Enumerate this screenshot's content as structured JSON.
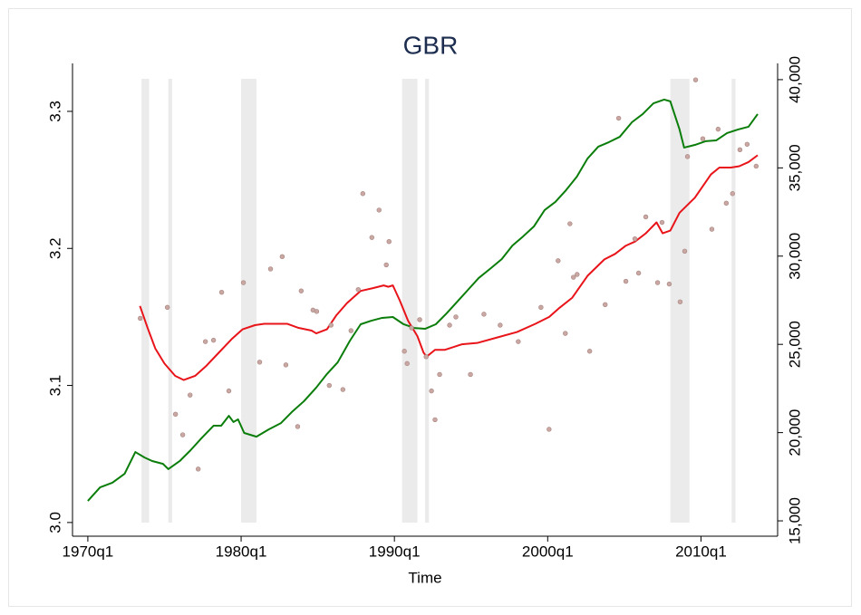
{
  "chart_data": {
    "type": "line",
    "title": "GBR",
    "xlabel": "Time",
    "xlim": [
      1969,
      2015
    ],
    "xticks": [
      {
        "value": 1970,
        "label": "1970q1"
      },
      {
        "value": 1980,
        "label": "1980q1"
      },
      {
        "value": 1990,
        "label": "1990q1"
      },
      {
        "value": 2000,
        "label": "2000q1"
      },
      {
        "value": 2010,
        "label": "2010q1"
      }
    ],
    "ylim": [
      2.99,
      3.335
    ],
    "yticks": [
      {
        "value": 3,
        "label": "3.0"
      },
      3.1,
      3.2,
      3.3
    ],
    "y2lim": [
      14130,
      40920
    ],
    "y2ticks": [
      {
        "value": 15000,
        "label": "15,000"
      },
      {
        "value": 20000,
        "label": "20,000"
      },
      {
        "value": 25000,
        "label": "25,000"
      },
      {
        "value": 30000,
        "label": "30,000"
      },
      {
        "value": 35000,
        "label": "35,000"
      },
      {
        "value": 40000,
        "label": "40,000"
      }
    ],
    "grid": false,
    "shaded_periods": [
      [
        1973.5,
        1974.0
      ],
      [
        1975.25,
        1975.5
      ],
      [
        1980.0,
        1981.0
      ],
      [
        1990.5,
        1991.5
      ],
      [
        1992.0,
        1992.25
      ],
      [
        2008.0,
        2009.25
      ],
      [
        2012.0,
        2012.25
      ]
    ],
    "shade_color": "#ebebeb",
    "series": [
      {
        "type": "line",
        "color": "#0a7d0a",
        "axis": "y2",
        "x": [
          1970.0,
          1970.8,
          1971.6,
          1972.4,
          1973.1,
          1973.7,
          1974.2,
          1974.9,
          1975.25,
          1976.0,
          1976.7,
          1977.4,
          1978.2,
          1978.7,
          1979.2,
          1979.5,
          1979.8,
          1980.2,
          1981.0,
          1981.8,
          1982.6,
          1983.3,
          1984.1,
          1984.9,
          1985.6,
          1986.3,
          1987.1,
          1987.8,
          1988.5,
          1989.2,
          1989.9,
          1990.6,
          1991.3,
          1992.0,
          1992.7,
          1993.4,
          1994.1,
          1994.8,
          1995.5,
          1996.3,
          1997.0,
          1997.7,
          1998.4,
          1999.1,
          1999.8,
          2000.5,
          2001.2,
          2001.9,
          2002.6,
          2003.3,
          2004.0,
          2004.7,
          2005.5,
          2006.2,
          2006.9,
          2007.6,
          2008.0,
          2008.6,
          2008.9,
          2009.6,
          2010.3,
          2011.0,
          2011.7,
          2012.4,
          2013.1,
          2013.7
        ],
        "values": [
          16130,
          16900,
          17160,
          17670,
          18900,
          18590,
          18390,
          18230,
          17930,
          18390,
          19000,
          19670,
          20390,
          20390,
          20950,
          20600,
          20750,
          19980,
          19770,
          20180,
          20540,
          21160,
          21780,
          22550,
          23320,
          23980,
          25210,
          26140,
          26340,
          26500,
          26550,
          26140,
          25930,
          25880,
          26140,
          26750,
          27420,
          28090,
          28760,
          29320,
          29830,
          30600,
          31120,
          31680,
          32610,
          33070,
          33740,
          34500,
          35530,
          36200,
          36460,
          36760,
          37590,
          38050,
          38660,
          38870,
          38770,
          37180,
          36150,
          36300,
          36510,
          36560,
          36970,
          37170,
          37330,
          38050
        ]
      },
      {
        "type": "line",
        "color": "#e8141a",
        "x": [
          1973.4,
          1973.9,
          1974.4,
          1975.0,
          1975.7,
          1976.25,
          1977.0,
          1977.7,
          1978.55,
          1979.4,
          1980.1,
          1980.9,
          1981.5,
          1982.2,
          1983.0,
          1983.75,
          1984.6,
          1984.9,
          1985.6,
          1986.2,
          1986.9,
          1987.8,
          1988.6,
          1989.3,
          1989.6,
          1989.9,
          1990.35,
          1990.9,
          1991.5,
          1991.9,
          1992.1,
          1992.65,
          1993.3,
          1994.4,
          1995.4,
          1996.7,
          1998.0,
          1999.2,
          2000.1,
          2000.7,
          2001.6,
          2002.6,
          2003.7,
          2004.4,
          2005.1,
          2005.7,
          2006.4,
          2007.1,
          2007.5,
          2008.0,
          2008.6,
          2009.6,
          2010.65,
          2011.2,
          2011.95,
          2012.5,
          2013.1,
          2013.7
        ],
        "values": [
          3.158,
          3.142,
          3.127,
          3.116,
          3.107,
          3.104,
          3.107,
          3.114,
          3.124,
          3.134,
          3.141,
          3.144,
          3.145,
          3.145,
          3.145,
          3.142,
          3.14,
          3.138,
          3.141,
          3.151,
          3.16,
          3.169,
          3.171,
          3.173,
          3.172,
          3.173,
          3.162,
          3.147,
          3.136,
          3.124,
          3.121,
          3.126,
          3.126,
          3.13,
          3.131,
          3.135,
          3.139,
          3.145,
          3.15,
          3.156,
          3.164,
          3.18,
          3.192,
          3.196,
          3.202,
          3.205,
          3.211,
          3.219,
          3.211,
          3.213,
          3.226,
          3.237,
          3.254,
          3.259,
          3.259,
          3.26,
          3.263,
          3.268
        ]
      },
      {
        "type": "scatter",
        "color": "#c9a7a2",
        "x": [
          1973.42,
          1975.19,
          1975.72,
          1976.19,
          1976.67,
          1977.2,
          1977.67,
          1978.2,
          1978.73,
          1979.2,
          1980.15,
          1981.21,
          1981.92,
          1982.68,
          1982.92,
          1983.69,
          1983.92,
          1984.69,
          1984.93,
          1985.75,
          1985.87,
          1986.64,
          1987.17,
          1987.64,
          1987.94,
          1988.53,
          1989.0,
          1989.47,
          1989.65,
          1990.65,
          1990.83,
          1991.12,
          1991.65,
          1992.07,
          1992.42,
          1992.65,
          1992.95,
          1993.6,
          1994.01,
          1994.96,
          1995.84,
          1996.9,
          1998.08,
          1999.56,
          2000.09,
          2000.68,
          2001.15,
          2001.45,
          2001.68,
          2001.92,
          2002.74,
          2003.75,
          2004.63,
          2005.1,
          2005.69,
          2005.93,
          2006.4,
          2007.17,
          2007.46,
          2007.93,
          2008.64,
          2008.94,
          2009.12,
          2009.65,
          2010.12,
          2010.71,
          2011.12,
          2011.65,
          2012.06,
          2012.54,
          2013.01,
          2013.6
        ],
        "values": [
          3.149,
          3.157,
          3.079,
          3.064,
          3.093,
          3.039,
          3.132,
          3.133,
          3.168,
          3.096,
          3.175,
          3.117,
          3.185,
          3.194,
          3.115,
          3.07,
          3.169,
          3.155,
          3.154,
          3.1,
          3.144,
          3.097,
          3.14,
          3.17,
          3.24,
          3.208,
          3.228,
          3.188,
          3.205,
          3.125,
          3.116,
          3.142,
          3.148,
          3.121,
          3.096,
          3.075,
          3.108,
          3.144,
          3.15,
          3.108,
          3.152,
          3.144,
          3.132,
          3.157,
          3.068,
          3.191,
          3.138,
          3.218,
          3.179,
          3.181,
          3.125,
          3.159,
          3.295,
          3.176,
          3.207,
          3.182,
          3.223,
          3.175,
          3.219,
          3.174,
          3.161,
          3.198,
          3.267,
          3.323,
          3.28,
          3.214,
          3.287,
          3.233,
          3.24,
          3.272,
          3.276,
          3.26
        ]
      }
    ]
  }
}
